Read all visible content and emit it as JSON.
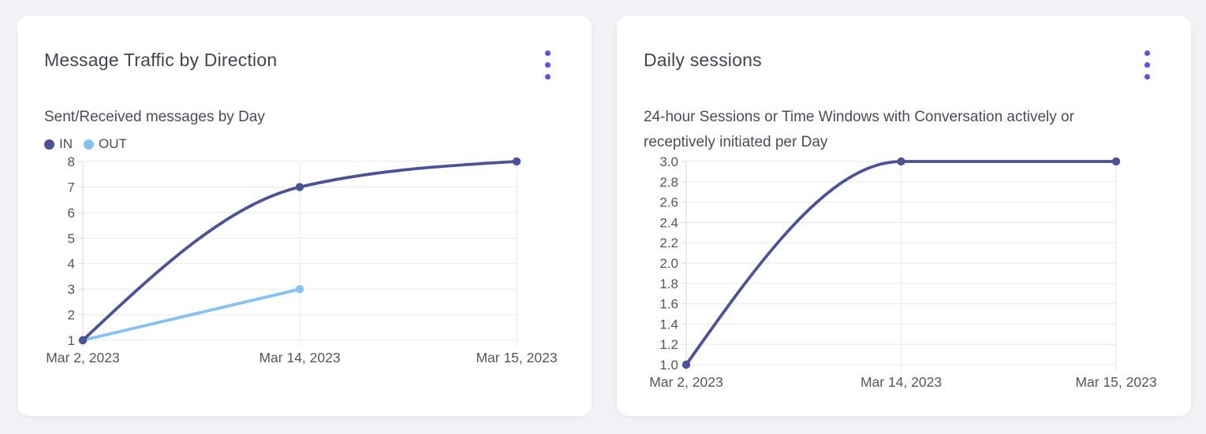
{
  "colors": {
    "page_bg": "#f1f2f5",
    "card_bg": "#ffffff",
    "menu_accent": "#5a51ee",
    "title_text": "#42454e",
    "subtitle_text": "#4a4d57",
    "tick_text": "#54565e",
    "grid_line": "#e9e9ec",
    "axis_line": "#d7d7dc"
  },
  "cards": [
    {
      "menu_icon": "kebab-menu-icon"
    },
    {
      "menu_icon": "kebab-menu-icon"
    }
  ],
  "chart_data": [
    {
      "type": "line",
      "title": "Message Traffic by Direction",
      "subtitle": "Sent/Received messages by Day",
      "x_categories": [
        "Mar 2, 2023",
        "Mar 14, 2023",
        "Mar 15, 2023"
      ],
      "xlabel": "",
      "ylabel": "",
      "ylim": [
        1,
        8
      ],
      "y_step": 1,
      "y_decimals": 0,
      "grid": true,
      "legend_position": "top-left",
      "series": [
        {
          "name": "IN",
          "color": "#4d5196",
          "x": [
            "Mar 2, 2023",
            "Mar 14, 2023",
            "Mar 15, 2023"
          ],
          "values": [
            1,
            7,
            8
          ]
        },
        {
          "name": "OUT",
          "color": "#85c1f2",
          "x": [
            "Mar 2, 2023",
            "Mar 14, 2023"
          ],
          "values": [
            1,
            3
          ]
        }
      ]
    },
    {
      "type": "line",
      "title": "Daily sessions",
      "subtitle": "24-hour Sessions or Time Windows with Conversation actively or receptively initiated per Day",
      "x_categories": [
        "Mar 2, 2023",
        "Mar 14, 2023",
        "Mar 15, 2023"
      ],
      "xlabel": "",
      "ylabel": "",
      "ylim": [
        1.0,
        3.0
      ],
      "y_step": 0.2,
      "y_decimals": 1,
      "grid": true,
      "legend_position": "none",
      "series": [
        {
          "name": "Daily sessions",
          "color": "#4d5196",
          "x": [
            "Mar 2, 2023",
            "Mar 14, 2023",
            "Mar 15, 2023"
          ],
          "values": [
            1.0,
            3.0,
            3.0
          ]
        }
      ]
    }
  ]
}
